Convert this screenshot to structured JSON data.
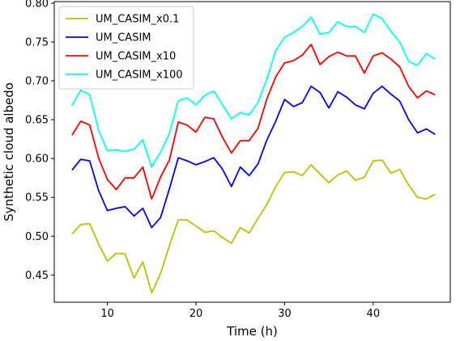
{
  "chart_data": {
    "type": "line",
    "xlabel": "Time (h)",
    "ylabel": "Synthetic cloud albedo",
    "xlim": [
      4.0,
      48.7
    ],
    "ylim": [
      0.415,
      0.802
    ],
    "xticks": [
      10,
      20,
      30,
      40
    ],
    "yticks": [
      0.45,
      0.5,
      0.55,
      0.6,
      0.65,
      0.7,
      0.75,
      0.8
    ],
    "xtick_labels": [
      "10",
      "20",
      "30",
      "40"
    ],
    "ytick_labels": [
      "0.45",
      "0.50",
      "0.55",
      "0.60",
      "0.65",
      "0.70",
      "0.75",
      "0.80"
    ],
    "grid": false,
    "legend_position": "top-left",
    "x": [
      6,
      7,
      8,
      9,
      10,
      11,
      12,
      13,
      14,
      15,
      16,
      17,
      18,
      19,
      20,
      21,
      22,
      23,
      24,
      25,
      26,
      27,
      28,
      29,
      30,
      31,
      32,
      33,
      34,
      35,
      36,
      37,
      38,
      39,
      40,
      41,
      42,
      43,
      44,
      45,
      46,
      47
    ],
    "series": [
      {
        "name": "UM_CASIM_x0.1",
        "color": "#bfbf00",
        "values": [
          0.503,
          0.515,
          0.516,
          0.49,
          0.468,
          0.478,
          0.477,
          0.446,
          0.467,
          0.427,
          0.452,
          0.488,
          0.521,
          0.521,
          0.513,
          0.505,
          0.507,
          0.498,
          0.491,
          0.511,
          0.504,
          0.523,
          0.541,
          0.564,
          0.582,
          0.583,
          0.578,
          0.592,
          0.58,
          0.569,
          0.579,
          0.584,
          0.572,
          0.576,
          0.597,
          0.598,
          0.581,
          0.586,
          0.566,
          0.55,
          0.548,
          0.554
        ]
      },
      {
        "name": "UM_CASIM",
        "color": "#0000ff",
        "values": [
          0.585,
          0.599,
          0.597,
          0.559,
          0.533,
          0.536,
          0.538,
          0.526,
          0.536,
          0.511,
          0.524,
          0.561,
          0.601,
          0.597,
          0.592,
          0.596,
          0.601,
          0.586,
          0.564,
          0.589,
          0.578,
          0.593,
          0.624,
          0.648,
          0.676,
          0.667,
          0.672,
          0.693,
          0.685,
          0.665,
          0.686,
          0.679,
          0.669,
          0.664,
          0.684,
          0.693,
          0.683,
          0.674,
          0.65,
          0.633,
          0.638,
          0.631
        ]
      },
      {
        "name": "UM_CASIM_x10",
        "color": "#ff0000",
        "values": [
          0.63,
          0.648,
          0.643,
          0.601,
          0.573,
          0.56,
          0.575,
          0.575,
          0.589,
          0.548,
          0.576,
          0.598,
          0.647,
          0.643,
          0.634,
          0.653,
          0.651,
          0.627,
          0.607,
          0.623,
          0.623,
          0.639,
          0.677,
          0.705,
          0.723,
          0.726,
          0.733,
          0.747,
          0.721,
          0.731,
          0.737,
          0.732,
          0.732,
          0.71,
          0.732,
          0.736,
          0.728,
          0.718,
          0.693,
          0.678,
          0.687,
          0.682
        ]
      },
      {
        "name": "UM_CASIM_x100",
        "color": "#00ffff",
        "values": [
          0.668,
          0.688,
          0.682,
          0.637,
          0.61,
          0.611,
          0.609,
          0.612,
          0.624,
          0.589,
          0.608,
          0.632,
          0.674,
          0.678,
          0.669,
          0.681,
          0.687,
          0.669,
          0.651,
          0.659,
          0.656,
          0.672,
          0.702,
          0.739,
          0.756,
          0.762,
          0.77,
          0.782,
          0.76,
          0.762,
          0.776,
          0.77,
          0.77,
          0.762,
          0.786,
          0.78,
          0.764,
          0.75,
          0.725,
          0.72,
          0.735,
          0.728
        ]
      }
    ]
  }
}
